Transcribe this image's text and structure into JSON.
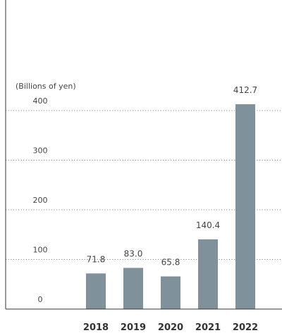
{
  "chart_data": {
    "type": "bar",
    "unit_label": "(Billions of yen)",
    "categories": [
      "2018",
      "2019",
      "2020",
      "2021",
      "2022"
    ],
    "values": [
      71.8,
      83.0,
      65.8,
      140.4,
      412.7
    ],
    "value_labels": [
      "71.8",
      "83.0",
      "65.8",
      "140.4",
      "412.7"
    ],
    "y_ticks": [
      "0",
      "100",
      "200",
      "300",
      "400"
    ],
    "y_tick_values": [
      0,
      100,
      200,
      300,
      400
    ],
    "ylim": [
      0,
      400
    ],
    "grid": true,
    "grid_style": "dotted",
    "title": "",
    "xlabel": "",
    "ylabel": ""
  },
  "colors": {
    "bar": "#7f929c",
    "grid": "#888888",
    "axis": "#333333",
    "text": "#444444"
  }
}
